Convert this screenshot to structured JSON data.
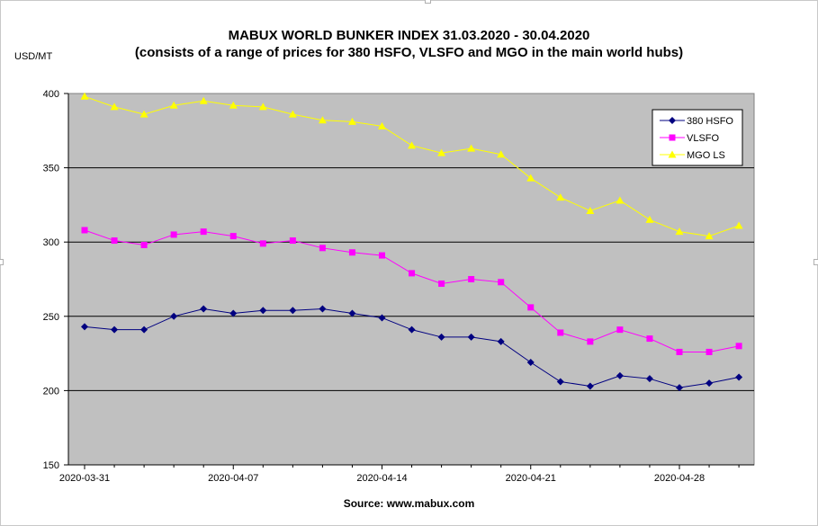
{
  "chart_data": {
    "type": "line",
    "title": "MABUX WORLD BUNKER INDEX 31.03.2020 - 30.04.2020",
    "subtitle": "(consists of a range of prices for 380 HSFO, VLSFO and MGO in the main world hubs)",
    "ylabel": "USD/MT",
    "source": "Source: www.mabux.com",
    "ylim": [
      150,
      400
    ],
    "yticks": [
      "150",
      "200",
      "250",
      "300",
      "350",
      "400"
    ],
    "grid": "horizontal",
    "legend_position": "top-right",
    "x": [
      "2020-03-31",
      "2020-04-01",
      "2020-04-02",
      "2020-04-03",
      "2020-04-06",
      "2020-04-07",
      "2020-04-08",
      "2020-04-09",
      "2020-04-10",
      "2020-04-13",
      "2020-04-14",
      "2020-04-15",
      "2020-04-16",
      "2020-04-17",
      "2020-04-20",
      "2020-04-21",
      "2020-04-22",
      "2020-04-23",
      "2020-04-24",
      "2020-04-27",
      "2020-04-28",
      "2020-04-29",
      "2020-04-30"
    ],
    "xticks": [
      "2020-03-31",
      "2020-04-07",
      "2020-04-14",
      "2020-04-21",
      "2020-04-28"
    ],
    "series": [
      {
        "name": "380 HSFO",
        "color": "#000080",
        "marker": "diamond",
        "values": [
          243,
          241,
          241,
          250,
          255,
          252,
          254,
          254,
          255,
          252,
          249,
          241,
          236,
          236,
          233,
          219,
          206,
          203,
          210,
          208,
          202,
          205,
          209
        ]
      },
      {
        "name": "VLSFO",
        "color": "#ff00ff",
        "marker": "square",
        "values": [
          308,
          301,
          298,
          305,
          307,
          304,
          299,
          301,
          296,
          293,
          291,
          279,
          272,
          275,
          273,
          256,
          239,
          233,
          241,
          235,
          226,
          226,
          230
        ]
      },
      {
        "name": "MGO LS",
        "color": "#ffff00",
        "marker": "triangle",
        "values": [
          398,
          391,
          386,
          392,
          395,
          392,
          391,
          386,
          382,
          381,
          378,
          365,
          360,
          363,
          359,
          343,
          330,
          321,
          328,
          315,
          307,
          304,
          311
        ]
      }
    ]
  }
}
